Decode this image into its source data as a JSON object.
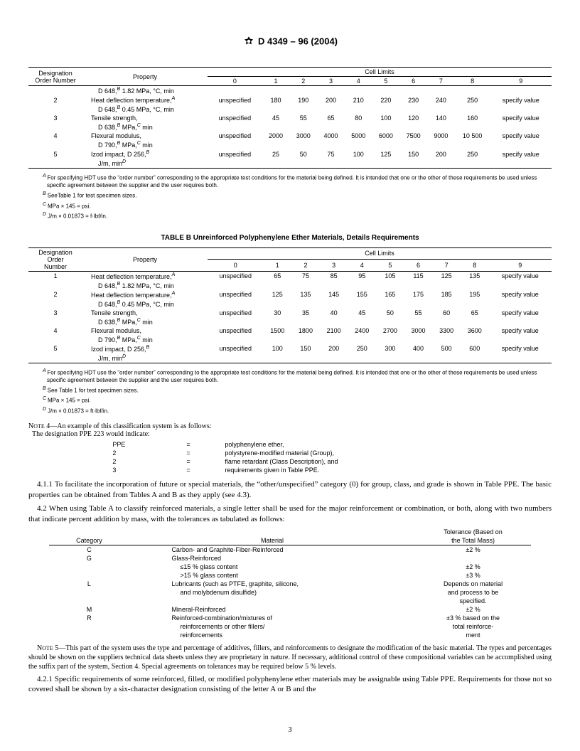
{
  "header": {
    "standard": "D 4349 – 96 (2004)"
  },
  "tableA": {
    "col_headers": {
      "designation": "Designation",
      "order_number": "Order Number",
      "property": "Property",
      "cell_limits": "Cell Limits"
    },
    "limit_cols": [
      "0",
      "1",
      "2",
      "3",
      "4",
      "5",
      "6",
      "7",
      "8",
      "9"
    ],
    "rows": [
      {
        "order": "",
        "prop": "D 648,",
        "supB": "B",
        "prop2": " 1.82 MPa, °C, min",
        "vals": [
          "",
          "",
          "",
          "",
          "",
          "",
          "",
          "",
          "",
          ""
        ]
      },
      {
        "order": "2",
        "prop": "Heat deflection temperature,",
        "supA": "A",
        "prop2": "",
        "vals": [
          "unspecified",
          "180",
          "190",
          "200",
          "210",
          "220",
          "230",
          "240",
          "250",
          "specify value"
        ]
      },
      {
        "order": "",
        "prop": "D 648,",
        "supB": "B",
        "prop2": " 0.45 MPa, °C, min",
        "vals": [
          "",
          "",
          "",
          "",
          "",
          "",
          "",
          "",
          "",
          ""
        ]
      },
      {
        "order": "3",
        "prop": "Tensile strength,",
        "prop2": "",
        "vals": [
          "unspecified",
          "45",
          "55",
          "65",
          "80",
          "100",
          "120",
          "140",
          "160",
          "specify value"
        ]
      },
      {
        "order": "",
        "prop": "D 638,",
        "supB": "B",
        "prop2": " MPa,",
        "supC": "C",
        "prop3": " min",
        "vals": [
          "",
          "",
          "",
          "",
          "",
          "",
          "",
          "",
          "",
          ""
        ]
      },
      {
        "order": "4",
        "prop": "Flexural modulus,",
        "vals": [
          "unspecified",
          "2000",
          "3000",
          "4000",
          "5000",
          "6000",
          "7500",
          "9000",
          "10 500",
          "specify value"
        ]
      },
      {
        "order": "",
        "prop": "D 790,",
        "supB": "B",
        "prop2": " MPa,",
        "supC": "C",
        "prop3": " min",
        "vals": [
          "",
          "",
          "",
          "",
          "",
          "",
          "",
          "",
          "",
          ""
        ]
      },
      {
        "order": "5",
        "prop": "Izod impact, D 256,",
        "supB": "B",
        "vals": [
          "unspecified",
          "25",
          "50",
          "75",
          "100",
          "125",
          "150",
          "200",
          "250",
          "specify value"
        ]
      },
      {
        "order": "",
        "prop": "J/m,",
        "supD": "D",
        "prop2": " min",
        "vals": [
          "",
          "",
          "",
          "",
          "",
          "",
          "",
          "",
          "",
          ""
        ]
      }
    ],
    "footnotes": {
      "A": "For specifying HDT use the “order number” corresponding to the appropriate test conditions for the material being defined. It is intended that one or the other of these requirements be used unless specific agreement between the supplier and the user requires both.",
      "B": "SeeTable 1 for test specimen sizes.",
      "C": "MPa × 145 = psi.",
      "D": "J/m × 0.01873 = f·lbf/in."
    }
  },
  "tableB": {
    "title": "TABLE   B  Unreinforced Polyphenylene Ether Materials, Details Requirements",
    "col_headers": {
      "designation": "Designation",
      "order": "Order",
      "number": "Number",
      "property": "Property",
      "cell_limits": "Cell Limits"
    },
    "limit_cols": [
      "0",
      "1",
      "2",
      "3",
      "4",
      "5",
      "6",
      "7",
      "8",
      "9"
    ],
    "rows": [
      {
        "order": "1",
        "prop": "Heat deflection temperature,",
        "supA": "A",
        "sub": "D 648,",
        "subSupB": "B",
        "sub2": " 1.82 MPa, °C, min",
        "vals": [
          "unspecified",
          "65",
          "75",
          "85",
          "95",
          "105",
          "115",
          "125",
          "135",
          "specify value"
        ]
      },
      {
        "order": "2",
        "prop": "Heat deflection temperature,",
        "supA": "A",
        "sub": "D 648,",
        "subSupB": "B",
        "sub2": " 0.45 MPa, °C, min",
        "vals": [
          "unspecified",
          "125",
          "135",
          "145",
          "155",
          "165",
          "175",
          "185",
          "195",
          "specify value"
        ]
      },
      {
        "order": "3",
        "prop": "Tensile strength,",
        "sub": "D 638,",
        "subSupB": "B",
        "sub2": " MPa,",
        "subSupC": "C",
        "sub3": " min",
        "vals": [
          "unspecified",
          "30",
          "35",
          "40",
          "45",
          "50",
          "55",
          "60",
          "65",
          "specify value"
        ]
      },
      {
        "order": "4",
        "prop": "Flexural modulus,",
        "sub": "D 790,",
        "subSupB": "B",
        "sub2": " MPa,",
        "subSupC": "C",
        "sub3": " min",
        "vals": [
          "unspecified",
          "1500",
          "1800",
          "2100",
          "2400",
          "2700",
          "3000",
          "3300",
          "3600",
          "specify value"
        ]
      },
      {
        "order": "5",
        "prop": "Izod impact, D 256,",
        "supB": "B",
        "sub": "J/m,",
        "subSupD": "D",
        "sub2": " min",
        "vals": [
          "unspecified",
          "100",
          "150",
          "200",
          "250",
          "300",
          "400",
          "500",
          "600",
          "specify value"
        ]
      }
    ],
    "footnotes": {
      "A": "For specifying HDT use the “order number” corresponding to the appropriate test conditions for the material being defined. It is intended that one or the other of these requirements be used unless specific agreement between the supplier and the user requires both.",
      "B": "See Table 1 for test specimen sizes.",
      "C": "MPa × 145 = psi.",
      "D": "J/m × 0.01873 = ft·lbf/in."
    }
  },
  "note4": {
    "lead": "NOTE 4—An example of this classification system is as follows:",
    "line2": "The designation PPE 223 would indicate:",
    "rows": [
      {
        "l": "PPE",
        "eq": "=",
        "r": "polyphenylene ether,"
      },
      {
        "l": "2",
        "eq": "=",
        "r": "polystyrene-modified material (Group),"
      },
      {
        "l": "2",
        "eq": "=",
        "r": "flame retardant (Class Description), and"
      },
      {
        "l": "3",
        "eq": "=",
        "r": "requirements given in Table PPE."
      }
    ]
  },
  "p411": "4.1.1 To facilitate the incorporation of future or special materials, the “other/unspecified” category (0) for group, class, and grade is shown in Table PPE. The basic properties can be obtained from Tables A and B as they apply (see 4.3).",
  "p42": "4.2 When using Table A to classify reinforced materials, a single letter shall be used for the major reinforcement or combination, or both, along with two numbers that indicate percent addition by mass, with the tolerances as tabulated as follows:",
  "catTable": {
    "headers": {
      "cat": "Category",
      "mat": "Material",
      "tol1": "Tolerance (Based on",
      "tol2": "the Total Mass)"
    },
    "rows": [
      {
        "cat": "C",
        "mat": [
          "Carbon- and Graphite-Fiber-Reinforced"
        ],
        "tol": [
          "±2 %"
        ]
      },
      {
        "cat": "G",
        "mat": [
          "Glass-Reinforced"
        ],
        "tol": [
          ""
        ]
      },
      {
        "cat": "",
        "mat": [
          "≤15 % glass content"
        ],
        "tol": [
          "±2 %"
        ]
      },
      {
        "cat": "",
        "mat": [
          ">15 % glass content"
        ],
        "tol": [
          "±3 %"
        ]
      },
      {
        "cat": "L",
        "mat": [
          "Lubricants (such as PTFE, graphite, silicone,",
          "and molybdenum disulfide)"
        ],
        "tol": [
          "Depends on material",
          "and process to be",
          "specified."
        ]
      },
      {
        "cat": "M",
        "mat": [
          "Mineral-Reinforced"
        ],
        "tol": [
          "±2 %"
        ]
      },
      {
        "cat": "R",
        "mat": [
          "Reinforced-combination/mixtures of",
          "reinforcements or other fillers/",
          "reinforcements"
        ],
        "tol": [
          "±3 % based on the",
          "total reinforce-",
          "ment"
        ]
      }
    ]
  },
  "note5": "NOTE 5—This part of the system uses the type and percentage of additives, fillers, and reinforcements to designate the modification of the basic material. The types and percentages should be shown on the suppliers technical data sheets unless they are proprietary in nature. If necessary, additional control of these compositional variables can be accomplished using the suffix part of the system, Section 4. Special agreements on tolerances may be required below 5 % levels.",
  "p421": "4.2.1 Specific requirements of some reinforced, filled, or modified polyphenylene ether materials may be assignable using Table PPE. Requirements for those not so covered shall be shown by a six-character designation consisting of the letter A or B and the",
  "page": "3"
}
